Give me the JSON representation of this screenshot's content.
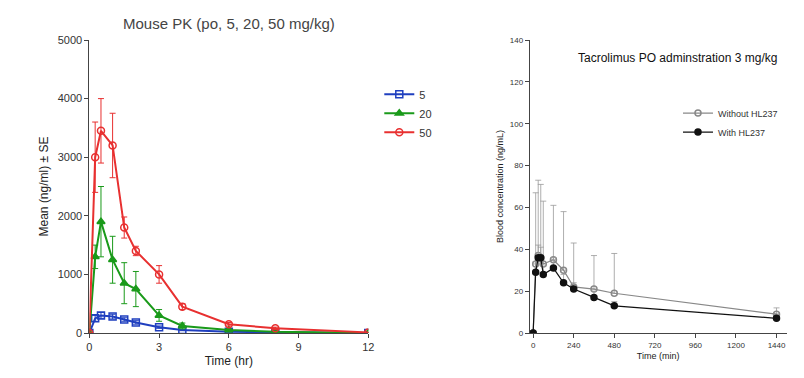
{
  "chart_data": [
    {
      "type": "line",
      "title": "Mouse PK (po, 5, 20, 50 mg/kg)",
      "x_label": "Time (hr)",
      "y_label": "Mean (ng/ml) ± SE",
      "x": [
        0,
        0.25,
        0.5,
        1,
        1.5,
        2,
        3,
        4,
        6,
        8,
        12
      ],
      "xlim": [
        0,
        12
      ],
      "xticks": [
        0,
        3,
        6,
        9,
        12
      ],
      "ylim": [
        0,
        5000
      ],
      "yticks": [
        0,
        1000,
        2000,
        3000,
        4000,
        5000
      ],
      "grid": false,
      "legend": "right",
      "series": [
        {
          "name": "5",
          "color": "#1f3fbf",
          "marker": "square-open",
          "values": [
            0,
            250,
            300,
            280,
            230,
            180,
            100,
            50,
            20,
            10,
            0
          ],
          "errors": [
            0,
            50,
            50,
            40,
            30,
            30,
            20,
            10,
            5,
            5,
            0
          ]
        },
        {
          "name": "20",
          "color": "#1a9a1a",
          "marker": "triangle-up",
          "values": [
            0,
            1300,
            1900,
            1250,
            850,
            750,
            300,
            120,
            50,
            20,
            0
          ],
          "errors": [
            0,
            200,
            600,
            400,
            350,
            300,
            100,
            50,
            20,
            10,
            0
          ]
        },
        {
          "name": "50",
          "color": "#e83030",
          "marker": "circle-open",
          "values": [
            0,
            3000,
            3450,
            3200,
            1800,
            1400,
            1000,
            450,
            150,
            80,
            10
          ],
          "errors": [
            0,
            600,
            550,
            550,
            180,
            80,
            150,
            50,
            30,
            20,
            0
          ]
        }
      ]
    },
    {
      "type": "line",
      "title": "Tacrolimus PO adminstration 3 mg/kg",
      "x_label": "Time (min)",
      "y_label": "Blood concentration (ng/mL)",
      "x": [
        0,
        15,
        30,
        45,
        60,
        120,
        180,
        240,
        360,
        480,
        1440
      ],
      "xlim": [
        -20,
        1500
      ],
      "xticks": [
        0,
        240,
        480,
        720,
        960,
        1200,
        1440
      ],
      "ylim": [
        0,
        140
      ],
      "yticks": [
        0,
        20,
        40,
        60,
        80,
        100,
        120,
        140
      ],
      "grid": false,
      "legend": "upper right",
      "series": [
        {
          "name": "Without HL237",
          "color": "#888888",
          "marker": "circle-open",
          "values": [
            0,
            33,
            37,
            36,
            33,
            35,
            30,
            22,
            21,
            19,
            9
          ],
          "error_plus": [
            0,
            34,
            36,
            35,
            30,
            26,
            28,
            21,
            16,
            19,
            3
          ]
        },
        {
          "name": "With HL237",
          "color": "#111111",
          "marker": "circle",
          "values": [
            0,
            29,
            36,
            36,
            28,
            31,
            24,
            21,
            17,
            13,
            7
          ],
          "error_plus": [
            0,
            5,
            6,
            5,
            4,
            5,
            4,
            3,
            3,
            2,
            2
          ]
        }
      ]
    }
  ]
}
